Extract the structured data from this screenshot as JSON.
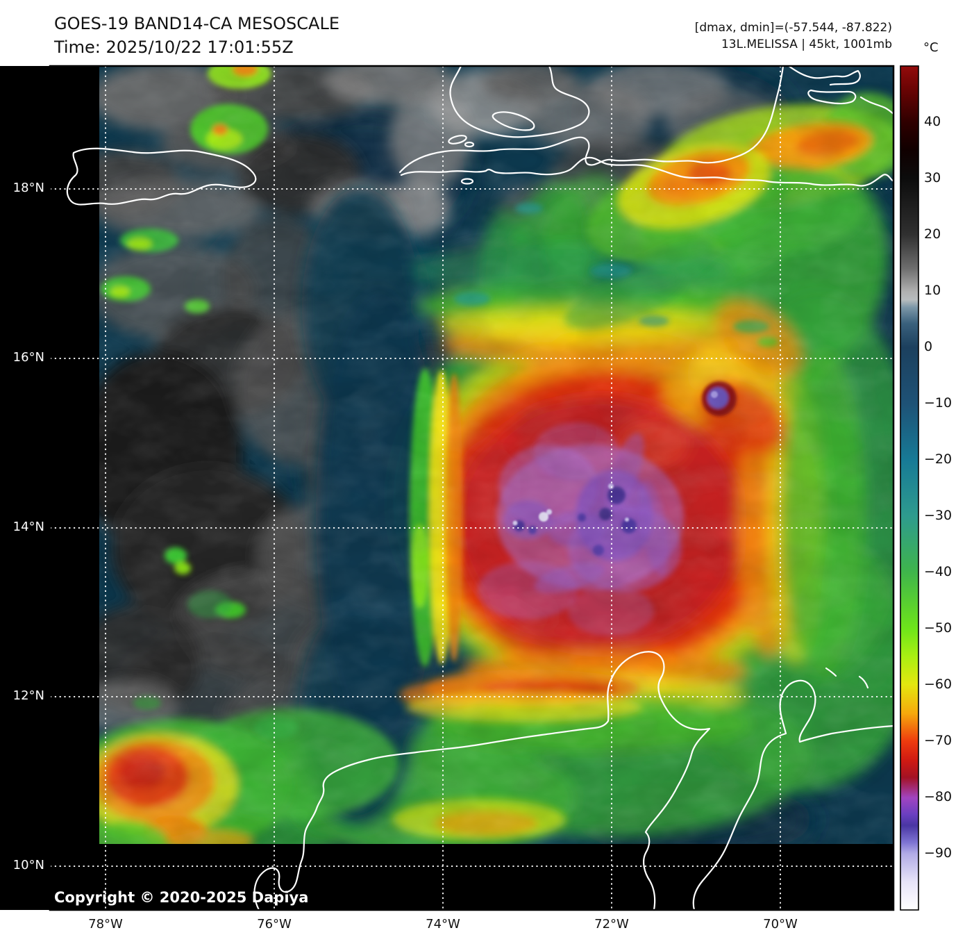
{
  "header": {
    "title": "GOES-19 BAND14-CA MESOSCALE",
    "time_line": "Time: 2025/10/22 17:01:55Z",
    "stats_line": "[dmax, dmin]=(-57.544, -87.822)",
    "storm_line": "13L.MELISSA | 45kt, 1001mb",
    "storm": {
      "id": "13L",
      "name": "MELISSA",
      "wind": "45kt",
      "pressure": "1001mb",
      "dmax": -57.544,
      "dmin": -87.822
    }
  },
  "colorbar": {
    "unit": "°C",
    "value_min": -100,
    "value_max": 50,
    "tick_values": [
      40,
      30,
      20,
      10,
      0,
      -10,
      -20,
      -30,
      -40,
      -50,
      -60,
      -70,
      -80,
      -90
    ],
    "tick_labels": [
      "40",
      "30",
      "20",
      "10",
      "0",
      "−10",
      "−20",
      "−30",
      "−40",
      "−50",
      "−60",
      "−70",
      "−80",
      "−90"
    ],
    "gradient_stops": [
      [
        0,
        "#930b0b"
      ],
      [
        3,
        "#660303"
      ],
      [
        6.7,
        "#2e0000"
      ],
      [
        10,
        "#100000"
      ],
      [
        13.3,
        "#0c0c0c"
      ],
      [
        20,
        "#303030"
      ],
      [
        24,
        "#6e6e6e"
      ],
      [
        26.7,
        "#b0b0b0"
      ],
      [
        27.7,
        "#b8bcbe"
      ],
      [
        28.6,
        "#7c97a8"
      ],
      [
        30.5,
        "#3a617d"
      ],
      [
        33.3,
        "#1c405e"
      ],
      [
        40,
        "#1e5276"
      ],
      [
        46.7,
        "#177a96"
      ],
      [
        53.3,
        "#2e9b8e"
      ],
      [
        60,
        "#3fb54b"
      ],
      [
        66.7,
        "#6ee51a"
      ],
      [
        70,
        "#aaef12"
      ],
      [
        73.3,
        "#e4e70f"
      ],
      [
        76.7,
        "#f6a90c"
      ],
      [
        80,
        "#ee3b0e"
      ],
      [
        82.3,
        "#cf1a12"
      ],
      [
        84.3,
        "#a31224"
      ],
      [
        86.7,
        "#a144c0"
      ],
      [
        88.7,
        "#6a3fc0"
      ],
      [
        90,
        "#4936a3"
      ],
      [
        92,
        "#7e74d2"
      ],
      [
        93.3,
        "#b1abe6"
      ],
      [
        96.7,
        "#e7e4f8"
      ],
      [
        100,
        "#ffffff"
      ]
    ]
  },
  "map": {
    "lat_labels": [
      "18°N",
      "16°N",
      "14°N",
      "12°N",
      "10°N"
    ],
    "lon_labels": [
      "78°W",
      "76°W",
      "74°W",
      "72°W",
      "70°W"
    ],
    "copyright": "Copyright © 2020-2025 Dapiya"
  },
  "palette": {
    "ocean_teal": "#0d3a50",
    "cloud_gray": "#6e6e6e",
    "convective_red": "#d62a2a",
    "overshoot_purple": "#8a5ac8",
    "grid_white": "#ffffff"
  }
}
